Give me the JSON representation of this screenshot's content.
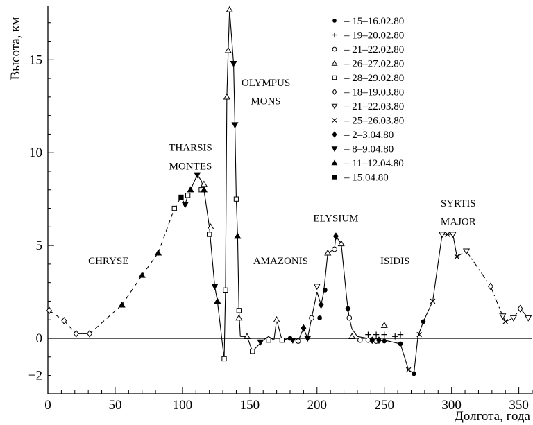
{
  "chart_data": {
    "type": "scatter",
    "xlabel": "Долгота, года",
    "ylabel": "Высота, км",
    "xlim": [
      0,
      360
    ],
    "ylim": [
      -3,
      18
    ],
    "xticks": [
      0,
      50,
      100,
      150,
      200,
      250,
      300,
      350
    ],
    "yticks": [
      -2,
      0,
      5,
      10,
      15
    ],
    "zero_line": true,
    "legend_position": "top-right",
    "region_labels": [
      {
        "text": "CHRYSE",
        "x": 45,
        "y": 4
      },
      {
        "text": "THARSIS",
        "x": 106,
        "y": 10.1
      },
      {
        "text": "MONTES",
        "x": 106,
        "y": 9.1
      },
      {
        "text": "OLYMPUS",
        "x": 162,
        "y": 13.6
      },
      {
        "text": "MONS",
        "x": 162,
        "y": 12.6
      },
      {
        "text": "AMAZONIS",
        "x": 173,
        "y": 4
      },
      {
        "text": "ELYSIUM",
        "x": 214,
        "y": 6.3
      },
      {
        "text": "ISIDIS",
        "x": 258,
        "y": 4
      },
      {
        "text": "SYRTIS",
        "x": 305,
        "y": 7.1
      },
      {
        "text": "MAJOR",
        "x": 305,
        "y": 6.1
      }
    ],
    "profile": [
      {
        "x": 1,
        "y": 1.5,
        "d": 1
      },
      {
        "x": 12,
        "y": 0.95,
        "d": 1
      },
      {
        "x": 21,
        "y": 0.25,
        "d": 0
      },
      {
        "x": 31,
        "y": 0.25,
        "d": 1
      },
      {
        "x": 55,
        "y": 1.8,
        "d": 1
      },
      {
        "x": 70,
        "y": 3.4,
        "d": 1
      },
      {
        "x": 82,
        "y": 4.6,
        "d": 1
      },
      {
        "x": 94,
        "y": 7.0,
        "d": 1
      },
      {
        "x": 99,
        "y": 7.6,
        "d": 0
      },
      {
        "x": 102,
        "y": 7.2,
        "d": 0
      },
      {
        "x": 104,
        "y": 7.7,
        "d": 0
      },
      {
        "x": 106,
        "y": 8.0,
        "d": 0
      },
      {
        "x": 111,
        "y": 8.8,
        "d": 0
      },
      {
        "x": 114,
        "y": 8.5,
        "d": 0
      },
      {
        "x": 116,
        "y": 8.0,
        "d": 0
      },
      {
        "x": 120,
        "y": 6.0,
        "d": 0
      },
      {
        "x": 124,
        "y": 2.8,
        "d": 0
      },
      {
        "x": 126,
        "y": 2.0,
        "d": 0
      },
      {
        "x": 131,
        "y": -1.1,
        "d": 0
      },
      {
        "x": 132,
        "y": 2.6,
        "d": 0
      },
      {
        "x": 133,
        "y": 13.0,
        "d": 0
      },
      {
        "x": 134,
        "y": 15.5,
        "d": 0
      },
      {
        "x": 135,
        "y": 17.7,
        "d": 0
      },
      {
        "x": 138,
        "y": 14.8,
        "d": 0
      },
      {
        "x": 139,
        "y": 11.5,
        "d": 0
      },
      {
        "x": 140,
        "y": 7.5,
        "d": 0
      },
      {
        "x": 141,
        "y": 5.5,
        "d": 0
      },
      {
        "x": 142,
        "y": 1.5,
        "d": 0
      },
      {
        "x": 143,
        "y": 0.1,
        "d": 0
      },
      {
        "x": 148,
        "y": 0.1,
        "d": 0
      },
      {
        "x": 152,
        "y": -0.7,
        "d": 0
      },
      {
        "x": 160,
        "y": -0.1,
        "d": 0
      },
      {
        "x": 164,
        "y": 0.1,
        "d": 0
      },
      {
        "x": 168,
        "y": -0.1,
        "d": 0
      },
      {
        "x": 170,
        "y": 1.0,
        "d": 0
      },
      {
        "x": 174,
        "y": -0.1,
        "d": 0
      },
      {
        "x": 180,
        "y": 0,
        "d": 0
      },
      {
        "x": 186,
        "y": -0.15,
        "d": 0
      },
      {
        "x": 190,
        "y": 0.55,
        "d": 0
      },
      {
        "x": 193,
        "y": 0,
        "d": 0
      },
      {
        "x": 196,
        "y": 1.1,
        "d": 0
      },
      {
        "x": 200,
        "y": 2.5,
        "d": 0
      },
      {
        "x": 203,
        "y": 1.8,
        "d": 0
      },
      {
        "x": 205,
        "y": 2.5,
        "d": 0
      },
      {
        "x": 208,
        "y": 4.6,
        "d": 0
      },
      {
        "x": 213,
        "y": 4.8,
        "d": 0
      },
      {
        "x": 214,
        "y": 5.5,
        "d": 0
      },
      {
        "x": 218,
        "y": 5.1,
        "d": 0
      },
      {
        "x": 222,
        "y": 2.2,
        "d": 0
      },
      {
        "x": 223,
        "y": 1.6,
        "d": 0
      },
      {
        "x": 224,
        "y": 1.1,
        "d": 0
      },
      {
        "x": 226,
        "y": 0.5,
        "d": 0
      },
      {
        "x": 230,
        "y": 0.1,
        "d": 0
      },
      {
        "x": 238,
        "y": 0,
        "d": 0
      },
      {
        "x": 244,
        "y": -0.15,
        "d": 0
      },
      {
        "x": 250,
        "y": -0.1,
        "d": 0
      },
      {
        "x": 262,
        "y": -0.3,
        "d": 0
      },
      {
        "x": 268,
        "y": -1.7,
        "d": 0
      },
      {
        "x": 272,
        "y": -1.9,
        "d": 0
      },
      {
        "x": 275,
        "y": 0.1,
        "d": 0
      },
      {
        "x": 279,
        "y": 0.9,
        "d": 0
      },
      {
        "x": 286,
        "y": 2.0,
        "d": 0
      },
      {
        "x": 293,
        "y": 5.6,
        "d": 0
      },
      {
        "x": 297,
        "y": 5.6,
        "d": 0
      },
      {
        "x": 301,
        "y": 5.6,
        "d": 0
      },
      {
        "x": 304,
        "y": 4.4,
        "d": 2
      },
      {
        "x": 311,
        "y": 4.7,
        "d": 2
      },
      {
        "x": 329,
        "y": 2.8,
        "d": 2
      },
      {
        "x": 338,
        "y": 1.2,
        "d": 0
      },
      {
        "x": 340,
        "y": 0.9,
        "d": 2
      },
      {
        "x": 346,
        "y": 1.1,
        "d": 2
      },
      {
        "x": 351,
        "y": 1.6,
        "d": 0
      },
      {
        "x": 357,
        "y": 1.1,
        "d": 0
      }
    ],
    "series": [
      {
        "name": "– 15–16.02.80",
        "marker": "dot-filled",
        "points": [
          [
            180,
            0
          ],
          [
            202,
            1.1
          ],
          [
            206,
            2.6
          ],
          [
            213,
            4.8
          ],
          [
            224,
            1.1
          ],
          [
            250,
            -0.15
          ],
          [
            262,
            -0.3
          ],
          [
            272,
            -1.9
          ],
          [
            279,
            0.9
          ]
        ]
      },
      {
        "name": "– 19–20.02.80",
        "marker": "plus",
        "points": [
          [
            238,
            0.2
          ],
          [
            244,
            0.2
          ],
          [
            250,
            0.2
          ],
          [
            258,
            0.1
          ],
          [
            262,
            0.2
          ]
        ]
      },
      {
        "name": "– 21–22.02.80",
        "marker": "circle-open",
        "points": [
          [
            186,
            -0.15
          ],
          [
            196,
            1.1
          ],
          [
            213,
            4.8
          ],
          [
            224,
            1.1
          ],
          [
            232,
            -0.1
          ],
          [
            238,
            -0.1
          ],
          [
            244,
            -0.15
          ]
        ]
      },
      {
        "name": "– 26–27.02.80",
        "marker": "triangle-up-open",
        "points": [
          [
            116,
            8.3
          ],
          [
            121,
            6.0
          ],
          [
            133,
            13.0
          ],
          [
            134,
            15.5
          ],
          [
            135,
            17.7
          ],
          [
            142,
            1.1
          ],
          [
            148,
            0.1
          ],
          [
            170,
            1.0
          ],
          [
            208,
            4.6
          ],
          [
            218,
            5.1
          ],
          [
            226,
            0.1
          ],
          [
            250,
            0.7
          ]
        ]
      },
      {
        "name": "– 28–29.02.80",
        "marker": "square-open",
        "points": [
          [
            94,
            7.0
          ],
          [
            104,
            7.7
          ],
          [
            114,
            8.0
          ],
          [
            120,
            5.6
          ],
          [
            131,
            -1.1
          ],
          [
            132,
            2.6
          ],
          [
            140,
            7.5
          ],
          [
            142,
            1.5
          ],
          [
            152,
            -0.7
          ],
          [
            164,
            -0.1
          ],
          [
            174,
            -0.1
          ]
        ]
      },
      {
        "name": "– 18–19.03.80",
        "marker": "diamond-open",
        "points": [
          [
            1,
            1.5
          ],
          [
            12,
            0.95
          ],
          [
            21,
            0.25
          ],
          [
            31,
            0.25
          ],
          [
            329,
            2.8
          ],
          [
            351,
            1.6
          ]
        ]
      },
      {
        "name": "– 21–22.03.80",
        "marker": "triangle-down-open",
        "points": [
          [
            200,
            2.8
          ],
          [
            293,
            5.6
          ],
          [
            301,
            5.6
          ],
          [
            311,
            4.7
          ],
          [
            338,
            1.2
          ],
          [
            346,
            1.1
          ],
          [
            357,
            1.1
          ]
        ]
      },
      {
        "name": "– 25–26.03.80",
        "marker": "cross",
        "points": [
          [
            268,
            -1.7
          ],
          [
            276,
            0.2
          ],
          [
            286,
            2.0
          ],
          [
            297,
            5.6
          ],
          [
            304,
            4.4
          ],
          [
            340,
            0.9
          ]
        ]
      },
      {
        "name": "– 2–3.04.80",
        "marker": "diamond-filled",
        "points": [
          [
            190,
            0.55
          ],
          [
            203,
            1.8
          ],
          [
            214,
            5.5
          ],
          [
            223,
            1.6
          ],
          [
            241,
            -0.1
          ],
          [
            246,
            -0.1
          ]
        ]
      },
      {
        "name": "– 8–9.04.80",
        "marker": "triangle-down-filled",
        "points": [
          [
            102,
            7.2
          ],
          [
            111,
            8.8
          ],
          [
            124,
            2.8
          ],
          [
            138,
            14.8
          ],
          [
            139,
            11.5
          ],
          [
            158,
            -0.2
          ],
          [
            182,
            -0.1
          ],
          [
            193,
            0
          ]
        ]
      },
      {
        "name": "– 11–12.04.80",
        "marker": "triangle-up-filled",
        "points": [
          [
            55,
            1.8
          ],
          [
            70,
            3.4
          ],
          [
            82,
            4.6
          ],
          [
            106,
            8.0
          ],
          [
            116,
            8.0
          ],
          [
            126,
            2.0
          ],
          [
            141,
            5.5
          ]
        ]
      },
      {
        "name": "– 15.04.80",
        "marker": "square-filled",
        "points": [
          [
            99,
            7.6
          ]
        ]
      }
    ]
  }
}
